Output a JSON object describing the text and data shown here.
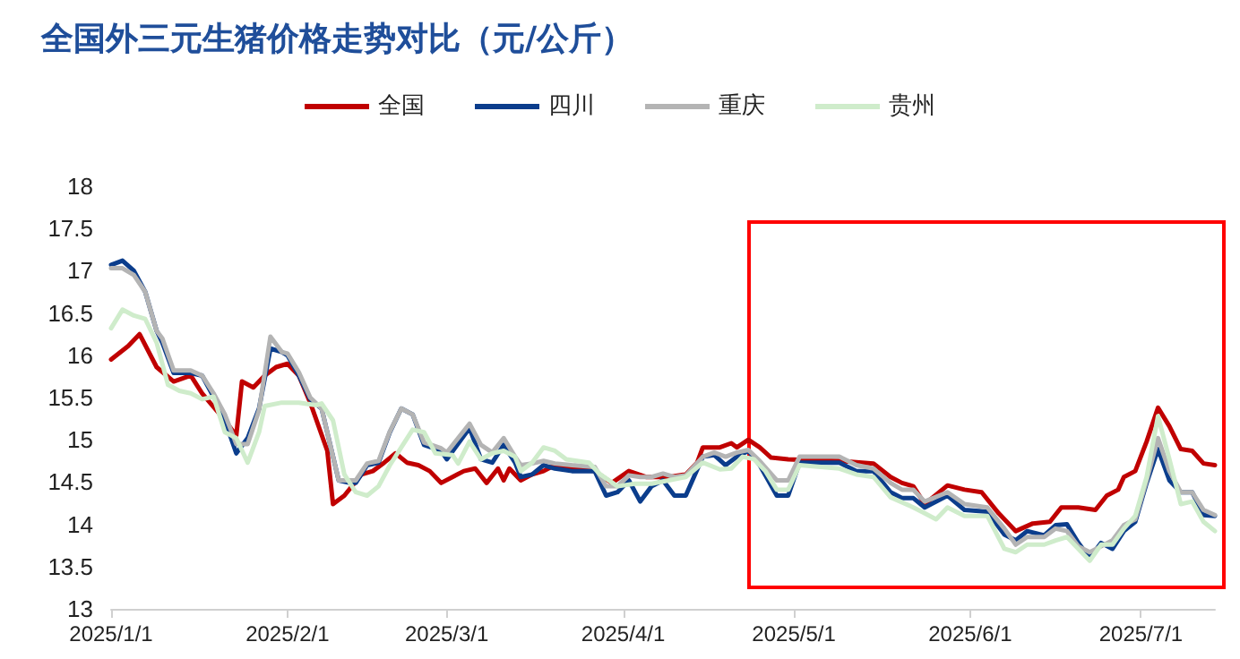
{
  "chart_data": {
    "type": "line",
    "title": "全国外三元生猪价格走势对比（元/公斤）",
    "legend": "top",
    "grid": false,
    "marker": "none",
    "line_style": "solid",
    "xlim": [
      "2025-01-01",
      "2025-07-14"
    ],
    "xticks": [
      {
        "value": "2025-01-01",
        "label": "2025/1/1"
      },
      {
        "value": "2025-02-01",
        "label": "2025/2/1"
      },
      {
        "value": "2025-03-01",
        "label": "2025/3/1"
      },
      {
        "value": "2025-04-01",
        "label": "2025/4/1"
      },
      {
        "value": "2025-05-01",
        "label": "2025/5/1"
      },
      {
        "value": "2025-06-01",
        "label": "2025/6/1"
      },
      {
        "value": "2025-07-01",
        "label": "2025/7/1"
      }
    ],
    "ylim": [
      13,
      18
    ],
    "yticks": [
      13,
      13.5,
      14,
      14.5,
      15,
      15.5,
      16,
      16.5,
      17,
      17.5,
      18
    ],
    "series": [
      {
        "name": "全国",
        "color": "#c00000",
        "x": [
          "2025-01-01",
          "2025-01-04",
          "2025-01-06",
          "2025-01-09",
          "2025-01-12",
          "2025-01-15",
          "2025-01-17",
          "2025-01-21",
          "2025-01-23",
          "2025-01-24",
          "2025-01-26",
          "2025-01-28",
          "2025-01-30",
          "2025-02-01",
          "2025-02-03",
          "2025-02-05",
          "2025-02-08",
          "2025-02-09",
          "2025-02-11",
          "2025-02-14",
          "2025-02-16",
          "2025-02-18",
          "2025-02-20",
          "2025-02-22",
          "2025-02-24",
          "2025-02-26",
          "2025-02-28",
          "2025-03-02",
          "2025-03-04",
          "2025-03-06",
          "2025-03-08",
          "2025-03-10",
          "2025-03-11",
          "2025-03-12",
          "2025-03-14",
          "2025-03-16",
          "2025-03-18",
          "2025-03-20",
          "2025-03-23",
          "2025-03-27",
          "2025-03-30",
          "2025-04-02",
          "2025-04-05",
          "2025-04-09",
          "2025-04-12",
          "2025-04-14",
          "2025-04-15",
          "2025-04-18",
          "2025-04-20",
          "2025-04-21",
          "2025-04-23",
          "2025-04-25",
          "2025-04-27",
          "2025-04-30",
          "2025-05-03",
          "2025-05-09",
          "2025-05-15",
          "2025-05-18",
          "2025-05-20",
          "2025-05-22",
          "2025-05-24",
          "2025-05-28",
          "2025-05-31",
          "2025-06-03",
          "2025-06-06",
          "2025-06-09",
          "2025-06-12",
          "2025-06-15",
          "2025-06-17",
          "2025-06-20",
          "2025-06-23",
          "2025-06-25",
          "2025-06-27",
          "2025-06-28",
          "2025-06-30",
          "2025-07-02",
          "2025-07-04",
          "2025-07-06",
          "2025-07-08",
          "2025-07-10",
          "2025-07-12",
          "2025-07-14"
        ],
        "values": [
          15.95,
          16.11,
          16.25,
          15.86,
          15.69,
          15.76,
          15.55,
          15.23,
          15.05,
          15.69,
          15.62,
          15.76,
          15.86,
          15.9,
          15.76,
          15.44,
          14.87,
          14.24,
          14.34,
          14.59,
          14.63,
          14.73,
          14.84,
          14.73,
          14.7,
          14.63,
          14.49,
          14.56,
          14.63,
          14.66,
          14.49,
          14.66,
          14.52,
          14.66,
          14.52,
          14.59,
          14.63,
          14.7,
          14.66,
          14.63,
          14.49,
          14.63,
          14.56,
          14.56,
          14.59,
          14.73,
          14.91,
          14.91,
          14.96,
          14.91,
          15.0,
          14.91,
          14.79,
          14.77,
          14.76,
          14.75,
          14.72,
          14.56,
          14.49,
          14.45,
          14.24,
          14.46,
          14.41,
          14.38,
          14.13,
          13.92,
          14.01,
          14.03,
          14.2,
          14.2,
          14.17,
          14.34,
          14.41,
          14.56,
          14.63,
          14.98,
          15.38,
          15.16,
          14.89,
          14.87,
          14.72,
          14.7
        ]
      },
      {
        "name": "四川",
        "color": "#0b3d8c",
        "x": [
          "2025-01-01",
          "2025-01-03",
          "2025-01-05",
          "2025-01-07",
          "2025-01-09",
          "2025-01-10",
          "2025-01-12",
          "2025-01-15",
          "2025-01-17",
          "2025-01-19",
          "2025-01-21",
          "2025-01-23",
          "2025-01-25",
          "2025-01-27",
          "2025-01-29",
          "2025-01-31",
          "2025-02-01",
          "2025-02-03",
          "2025-02-05",
          "2025-02-07",
          "2025-02-10",
          "2025-02-12",
          "2025-02-13",
          "2025-02-15",
          "2025-02-17",
          "2025-02-19",
          "2025-02-21",
          "2025-02-23",
          "2025-02-25",
          "2025-02-28",
          "2025-03-01",
          "2025-03-05",
          "2025-03-07",
          "2025-03-09",
          "2025-03-11",
          "2025-03-13",
          "2025-03-14",
          "2025-03-16",
          "2025-03-18",
          "2025-03-20",
          "2025-03-23",
          "2025-03-27",
          "2025-03-29",
          "2025-03-31",
          "2025-04-02",
          "2025-04-04",
          "2025-04-06",
          "2025-04-08",
          "2025-04-10",
          "2025-04-12",
          "2025-04-15",
          "2025-04-17",
          "2025-04-19",
          "2025-04-21",
          "2025-04-23",
          "2025-04-25",
          "2025-04-28",
          "2025-04-30",
          "2025-05-02",
          "2025-05-09",
          "2025-05-12",
          "2025-05-15",
          "2025-05-18",
          "2025-05-20",
          "2025-05-22",
          "2025-05-24",
          "2025-05-28",
          "2025-05-31",
          "2025-06-04",
          "2025-06-07",
          "2025-06-09",
          "2025-06-11",
          "2025-06-14",
          "2025-06-16",
          "2025-06-18",
          "2025-06-20",
          "2025-06-22",
          "2025-06-24",
          "2025-06-26",
          "2025-06-28",
          "2025-06-30",
          "2025-07-02",
          "2025-07-04",
          "2025-07-06",
          "2025-07-08",
          "2025-07-10",
          "2025-07-12",
          "2025-07-14"
        ],
        "values": [
          17.07,
          17.12,
          17.0,
          16.75,
          16.29,
          16.15,
          15.79,
          15.79,
          15.76,
          15.51,
          15.23,
          14.84,
          15.02,
          15.37,
          16.08,
          16.04,
          16.0,
          15.76,
          15.48,
          15.37,
          14.52,
          14.49,
          14.49,
          14.7,
          14.73,
          15.09,
          15.37,
          15.3,
          14.94,
          14.87,
          14.77,
          15.14,
          14.77,
          14.73,
          14.94,
          14.73,
          14.56,
          14.59,
          14.7,
          14.66,
          14.63,
          14.63,
          14.34,
          14.38,
          14.52,
          14.27,
          14.45,
          14.52,
          14.34,
          14.34,
          14.8,
          14.82,
          14.7,
          14.8,
          14.87,
          14.7,
          14.34,
          14.34,
          14.73,
          14.73,
          14.63,
          14.63,
          14.38,
          14.31,
          14.31,
          14.2,
          14.34,
          14.17,
          14.15,
          13.88,
          13.81,
          13.92,
          13.87,
          13.99,
          14.0,
          13.78,
          13.6,
          13.78,
          13.71,
          13.92,
          14.03,
          14.49,
          14.89,
          14.52,
          14.38,
          14.38,
          14.11,
          14.1
        ]
      },
      {
        "name": "重庆",
        "color": "#b4b4b4",
        "x": [
          "2025-01-01",
          "2025-01-03",
          "2025-01-05",
          "2025-01-07",
          "2025-01-09",
          "2025-01-10",
          "2025-01-12",
          "2025-01-15",
          "2025-01-17",
          "2025-01-19",
          "2025-01-21",
          "2025-01-23",
          "2025-01-25",
          "2025-01-27",
          "2025-01-29",
          "2025-01-31",
          "2025-02-01",
          "2025-02-03",
          "2025-02-05",
          "2025-02-07",
          "2025-02-10",
          "2025-02-12",
          "2025-02-13",
          "2025-02-15",
          "2025-02-17",
          "2025-02-19",
          "2025-02-21",
          "2025-02-23",
          "2025-02-25",
          "2025-02-28",
          "2025-03-01",
          "2025-03-05",
          "2025-03-07",
          "2025-03-09",
          "2025-03-11",
          "2025-03-13",
          "2025-03-14",
          "2025-03-16",
          "2025-03-18",
          "2025-03-20",
          "2025-03-23",
          "2025-03-27",
          "2025-03-29",
          "2025-03-31",
          "2025-04-02",
          "2025-04-04",
          "2025-04-06",
          "2025-04-08",
          "2025-04-10",
          "2025-04-12",
          "2025-04-15",
          "2025-04-17",
          "2025-04-19",
          "2025-04-21",
          "2025-04-23",
          "2025-04-25",
          "2025-04-28",
          "2025-04-30",
          "2025-05-02",
          "2025-05-09",
          "2025-05-12",
          "2025-05-15",
          "2025-05-18",
          "2025-05-20",
          "2025-05-22",
          "2025-05-24",
          "2025-05-28",
          "2025-05-31",
          "2025-06-04",
          "2025-06-07",
          "2025-06-09",
          "2025-06-11",
          "2025-06-14",
          "2025-06-16",
          "2025-06-18",
          "2025-06-20",
          "2025-06-22",
          "2025-06-24",
          "2025-06-26",
          "2025-06-28",
          "2025-06-30",
          "2025-07-02",
          "2025-07-04",
          "2025-07-06",
          "2025-07-08",
          "2025-07-10",
          "2025-07-12",
          "2025-07-14"
        ],
        "values": [
          17.03,
          17.03,
          16.95,
          16.75,
          16.29,
          16.2,
          15.82,
          15.82,
          15.76,
          15.55,
          15.3,
          14.95,
          14.95,
          15.35,
          16.22,
          16.04,
          16.02,
          15.8,
          15.5,
          15.37,
          14.52,
          14.52,
          14.52,
          14.72,
          14.75,
          15.1,
          15.37,
          15.3,
          14.97,
          14.9,
          14.85,
          15.19,
          14.94,
          14.85,
          15.02,
          14.8,
          14.7,
          14.72,
          14.75,
          14.72,
          14.7,
          14.68,
          14.45,
          14.45,
          14.58,
          14.56,
          14.56,
          14.6,
          14.56,
          14.58,
          14.8,
          14.85,
          14.8,
          14.85,
          14.88,
          14.75,
          14.52,
          14.52,
          14.8,
          14.8,
          14.7,
          14.66,
          14.49,
          14.41,
          14.41,
          14.27,
          14.38,
          14.24,
          14.2,
          13.95,
          13.76,
          13.85,
          13.85,
          13.95,
          13.92,
          13.74,
          13.67,
          13.74,
          13.81,
          13.99,
          14.06,
          14.52,
          15.02,
          14.63,
          14.38,
          14.38,
          14.17,
          14.11
        ]
      },
      {
        "name": "贵州",
        "color": "#cfeccb",
        "x": [
          "2025-01-01",
          "2025-01-03",
          "2025-01-05",
          "2025-01-07",
          "2025-01-09",
          "2025-01-11",
          "2025-01-13",
          "2025-01-15",
          "2025-01-17",
          "2025-01-19",
          "2025-01-21",
          "2025-01-23",
          "2025-01-25",
          "2025-01-27",
          "2025-01-28",
          "2025-01-31",
          "2025-02-03",
          "2025-02-06",
          "2025-02-07",
          "2025-02-09",
          "2025-02-11",
          "2025-02-13",
          "2025-02-15",
          "2025-02-17",
          "2025-02-19",
          "2025-02-21",
          "2025-02-23",
          "2025-02-25",
          "2025-02-27",
          "2025-03-02",
          "2025-03-03",
          "2025-03-05",
          "2025-03-07",
          "2025-03-09",
          "2025-03-11",
          "2025-03-13",
          "2025-03-14",
          "2025-03-16",
          "2025-03-18",
          "2025-03-20",
          "2025-03-22",
          "2025-03-26",
          "2025-03-28",
          "2025-03-31",
          "2025-04-03",
          "2025-04-06",
          "2025-04-09",
          "2025-04-12",
          "2025-04-15",
          "2025-04-18",
          "2025-04-20",
          "2025-04-22",
          "2025-04-24",
          "2025-04-26",
          "2025-04-28",
          "2025-04-30",
          "2025-05-02",
          "2025-05-09",
          "2025-05-12",
          "2025-05-15",
          "2025-05-18",
          "2025-05-22",
          "2025-05-24",
          "2025-05-26",
          "2025-05-28",
          "2025-05-31",
          "2025-06-04",
          "2025-06-07",
          "2025-06-09",
          "2025-06-11",
          "2025-06-14",
          "2025-06-16",
          "2025-06-18",
          "2025-06-20",
          "2025-06-22",
          "2025-06-24",
          "2025-06-26",
          "2025-06-28",
          "2025-06-30",
          "2025-07-02",
          "2025-07-04",
          "2025-07-06",
          "2025-07-08",
          "2025-07-10",
          "2025-07-12",
          "2025-07-14"
        ],
        "values": [
          16.32,
          16.54,
          16.47,
          16.43,
          16.15,
          15.65,
          15.58,
          15.55,
          15.48,
          15.51,
          15.09,
          15.02,
          14.73,
          15.09,
          15.4,
          15.44,
          15.44,
          15.41,
          15.43,
          15.23,
          14.59,
          14.38,
          14.34,
          14.45,
          14.7,
          14.91,
          15.12,
          15.09,
          14.84,
          14.82,
          14.72,
          14.98,
          14.77,
          14.84,
          14.87,
          14.8,
          14.63,
          14.73,
          14.91,
          14.87,
          14.77,
          14.73,
          14.59,
          14.45,
          14.48,
          14.48,
          14.52,
          14.56,
          14.73,
          14.65,
          14.66,
          14.8,
          14.77,
          14.63,
          14.41,
          14.41,
          14.7,
          14.66,
          14.59,
          14.56,
          14.32,
          14.2,
          14.13,
          14.06,
          14.2,
          14.1,
          14.1,
          13.71,
          13.67,
          13.76,
          13.76,
          13.81,
          13.85,
          13.71,
          13.57,
          13.76,
          13.76,
          13.95,
          14.1,
          14.56,
          15.28,
          14.77,
          14.24,
          14.27,
          14.03,
          13.92
        ]
      }
    ]
  }
}
